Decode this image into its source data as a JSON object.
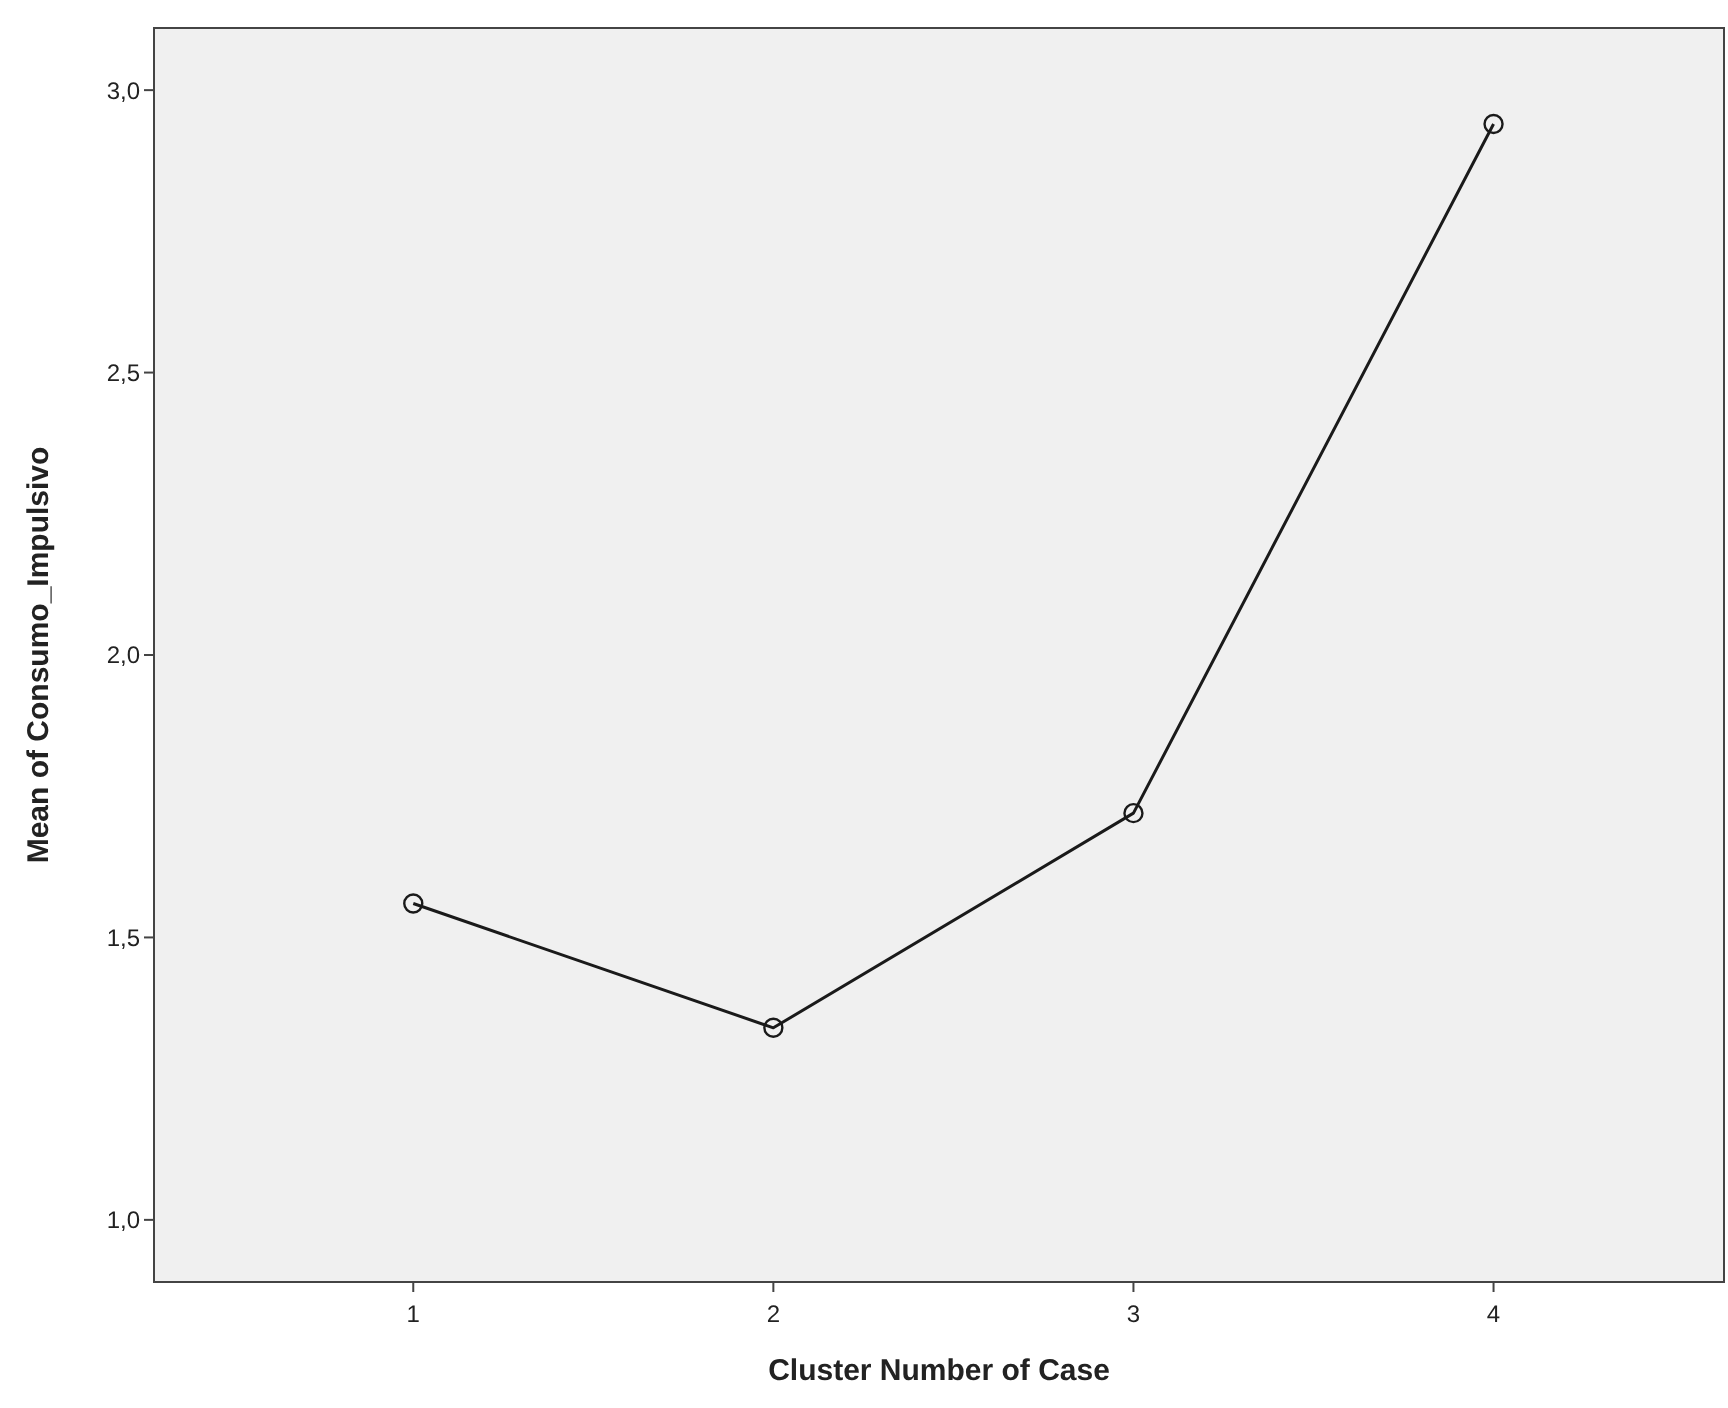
{
  "chart_data": {
    "type": "line",
    "xlabel": "Cluster Number of Case",
    "ylabel": "Mean of Consumo_Impulsivo",
    "categories": [
      "1",
      "2",
      "3",
      "4"
    ],
    "series": [
      {
        "color": "#1a1a1a",
        "values": [
          1.56,
          1.34,
          1.72,
          2.94
        ]
      }
    ],
    "ylim": [
      0.89,
      3.11
    ],
    "yticks": [
      {
        "value": 1.0,
        "label": "1,0"
      },
      {
        "value": 1.5,
        "label": "1,5"
      },
      {
        "value": 2.0,
        "label": "2,0"
      },
      {
        "value": 2.5,
        "label": "2,5"
      },
      {
        "value": 3.0,
        "label": "3,0"
      }
    ],
    "marker": "circle",
    "line_style": "solid"
  }
}
